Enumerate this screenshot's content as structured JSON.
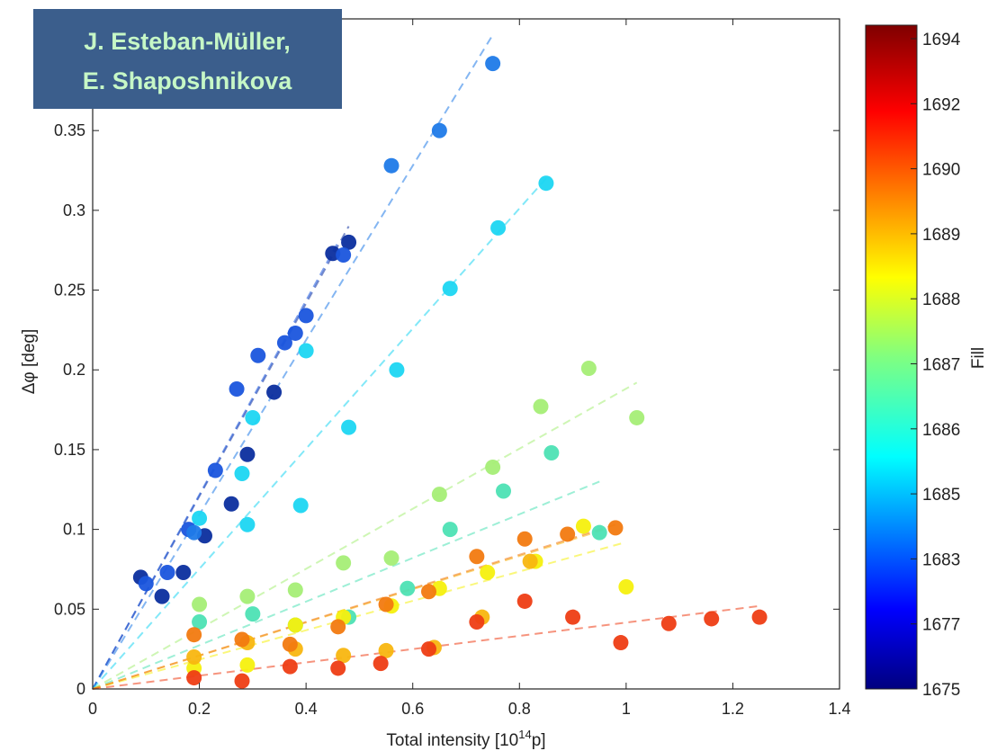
{
  "banner": {
    "line1": "J. Esteban-Müller,",
    "line2": "E. Shaposhnikova",
    "background": "#3b5e8c",
    "text_color": "#c6f7c6"
  },
  "chart_data": {
    "type": "scatter",
    "xlabel_main": "Total intensity [10",
    "xlabel_exp": "14",
    "xlabel_tail": "p]",
    "ylabel": "Δφ [deg]",
    "xlim": [
      0,
      1.4
    ],
    "ylim": [
      0,
      0.42
    ],
    "x_ticks": [
      "0",
      "0.2",
      "0.4",
      "0.6",
      "0.8",
      "1",
      "1.2",
      "1.4"
    ],
    "y_ticks": [
      "0",
      "0.05",
      "0.1",
      "0.15",
      "0.2",
      "0.25",
      "0.3",
      "0.35"
    ],
    "colorbar": {
      "label": "Fill",
      "tick_labels": [
        "1675",
        "1677",
        "1683",
        "1685",
        "1686",
        "1687",
        "1688",
        "1689",
        "1690",
        "1692",
        "1694"
      ]
    },
    "series": [
      {
        "fill_index": 0,
        "color": "#0b2e9e",
        "fit": [
          0,
          0,
          0.48,
          0.29
        ],
        "points": [
          [
            0.09,
            0.07
          ],
          [
            0.13,
            0.058
          ],
          [
            0.17,
            0.073
          ],
          [
            0.21,
            0.096
          ],
          [
            0.26,
            0.116
          ],
          [
            0.29,
            0.147
          ],
          [
            0.34,
            0.186
          ],
          [
            0.45,
            0.273
          ],
          [
            0.48,
            0.28
          ]
        ]
      },
      {
        "fill_index": 1,
        "color": "#1a55dd",
        "fit": [
          0,
          0,
          0.46,
          0.28
        ],
        "points": [
          [
            0.1,
            0.066
          ],
          [
            0.14,
            0.073
          ],
          [
            0.18,
            0.1
          ],
          [
            0.23,
            0.137
          ],
          [
            0.27,
            0.188
          ],
          [
            0.31,
            0.209
          ],
          [
            0.36,
            0.217
          ],
          [
            0.38,
            0.223
          ],
          [
            0.4,
            0.234
          ],
          [
            0.47,
            0.272
          ]
        ]
      },
      {
        "fill_index": 2,
        "color": "#1f7ae8",
        "fit": [
          0,
          0,
          0.75,
          0.41
        ],
        "points": [
          [
            0.19,
            0.098
          ],
          [
            0.56,
            0.328
          ],
          [
            0.65,
            0.35
          ],
          [
            0.75,
            0.392
          ]
        ]
      },
      {
        "fill_index": 3,
        "color": "#1cd6f2",
        "fit": [
          0,
          0,
          0.85,
          0.32
        ],
        "points": [
          [
            0.2,
            0.107
          ],
          [
            0.28,
            0.135
          ],
          [
            0.29,
            0.103
          ],
          [
            0.3,
            0.17
          ],
          [
            0.39,
            0.115
          ],
          [
            0.4,
            0.212
          ],
          [
            0.48,
            0.164
          ],
          [
            0.57,
            0.2
          ],
          [
            0.67,
            0.251
          ],
          [
            0.76,
            0.289
          ],
          [
            0.85,
            0.317
          ]
        ]
      },
      {
        "fill_index": 4,
        "color": "#4de2b4",
        "fit": [
          0,
          0,
          0.95,
          0.13
        ],
        "points": [
          [
            0.2,
            0.042
          ],
          [
            0.3,
            0.047
          ],
          [
            0.38,
            0.04
          ],
          [
            0.48,
            0.045
          ],
          [
            0.59,
            0.063
          ],
          [
            0.67,
            0.1
          ],
          [
            0.77,
            0.124
          ],
          [
            0.86,
            0.148
          ],
          [
            0.95,
            0.098
          ]
        ]
      },
      {
        "fill_index": 5,
        "color": "#a5ee76",
        "fit": [
          0,
          0,
          1.02,
          0.192
        ],
        "points": [
          [
            0.2,
            0.053
          ],
          [
            0.29,
            0.058
          ],
          [
            0.38,
            0.062
          ],
          [
            0.47,
            0.079
          ],
          [
            0.56,
            0.082
          ],
          [
            0.65,
            0.122
          ],
          [
            0.75,
            0.139
          ],
          [
            0.84,
            0.177
          ],
          [
            0.93,
            0.201
          ],
          [
            1.02,
            0.17
          ]
        ]
      },
      {
        "fill_index": 6,
        "color": "#f5f00e",
        "fit": [
          0,
          0,
          1.0,
          0.092
        ],
        "points": [
          [
            0.19,
            0.013
          ],
          [
            0.29,
            0.015
          ],
          [
            0.38,
            0.04
          ],
          [
            0.47,
            0.045
          ],
          [
            0.56,
            0.052
          ],
          [
            0.65,
            0.063
          ],
          [
            0.74,
            0.073
          ],
          [
            0.83,
            0.08
          ],
          [
            0.92,
            0.102
          ],
          [
            1.0,
            0.064
          ]
        ]
      },
      {
        "fill_index": 7,
        "color": "#f8b610",
        "fit": [
          0,
          0,
          0.96,
          0.1
        ],
        "points": [
          [
            0.19,
            0.02
          ],
          [
            0.29,
            0.029
          ],
          [
            0.38,
            0.025
          ],
          [
            0.47,
            0.021
          ],
          [
            0.55,
            0.024
          ],
          [
            0.64,
            0.026
          ],
          [
            0.73,
            0.045
          ],
          [
            0.82,
            0.08
          ]
        ]
      },
      {
        "fill_index": 8,
        "color": "#f27a10",
        "fit": [
          0,
          0,
          0.98,
          0.103
        ],
        "points": [
          [
            0.19,
            0.034
          ],
          [
            0.28,
            0.031
          ],
          [
            0.37,
            0.028
          ],
          [
            0.46,
            0.039
          ],
          [
            0.55,
            0.053
          ],
          [
            0.63,
            0.061
          ],
          [
            0.72,
            0.083
          ],
          [
            0.81,
            0.094
          ],
          [
            0.89,
            0.097
          ],
          [
            0.98,
            0.101
          ]
        ]
      },
      {
        "fill_index": 9,
        "color": "#ee3d14",
        "fit": [
          0,
          0,
          1.25,
          0.052
        ],
        "points": [
          [
            0.19,
            0.007
          ],
          [
            0.28,
            0.005
          ],
          [
            0.37,
            0.014
          ],
          [
            0.46,
            0.013
          ],
          [
            0.54,
            0.016
          ],
          [
            0.63,
            0.025
          ],
          [
            0.72,
            0.042
          ],
          [
            0.81,
            0.055
          ],
          [
            0.9,
            0.045
          ],
          [
            0.99,
            0.029
          ],
          [
            1.08,
            0.041
          ],
          [
            1.16,
            0.044
          ],
          [
            1.25,
            0.045
          ]
        ]
      }
    ]
  }
}
